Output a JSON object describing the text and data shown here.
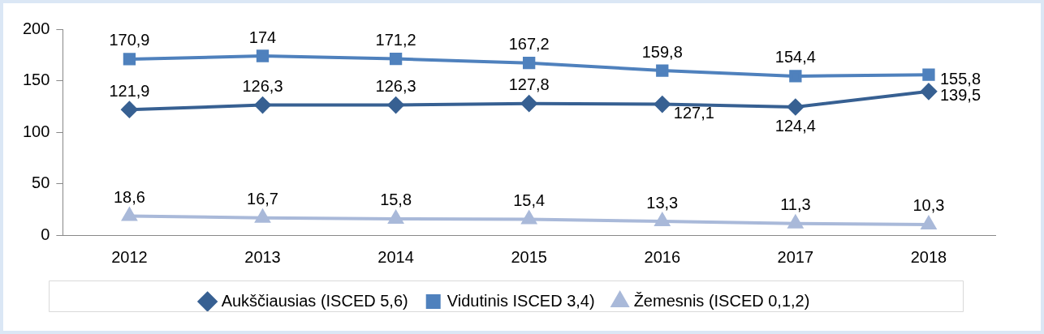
{
  "chart_data": {
    "type": "line",
    "categories": [
      "2012",
      "2013",
      "2014",
      "2015",
      "2016",
      "2017",
      "2018"
    ],
    "series": [
      {
        "name": "Aukščiausias (ISCED 5,6)",
        "color": "#376092",
        "marker": "diamond",
        "values": [
          121.9,
          126.3,
          126.3,
          127.8,
          127.1,
          124.4,
          139.5
        ],
        "value_labels": [
          "121,9",
          "126,3",
          "126,3",
          "127,8",
          "127,1",
          "124,4",
          "139,5"
        ]
      },
      {
        "name": "Vidutinis ISCED 3,4)",
        "color": "#4f81bd",
        "marker": "square",
        "values": [
          170.9,
          174,
          171.2,
          167.2,
          159.8,
          154.4,
          155.8
        ],
        "value_labels": [
          "170,9",
          "174",
          "171,2",
          "167,2",
          "159,8",
          "154,4",
          "155,8"
        ]
      },
      {
        "name": "Žemesnis (ISCED 0,1,2)",
        "color": "#a9b9d9",
        "marker": "triangle",
        "values": [
          18.6,
          16.7,
          15.8,
          15.4,
          13.3,
          11.3,
          10.3
        ],
        "value_labels": [
          "18,6",
          "16,7",
          "15,8",
          "15,4",
          "13,3",
          "11,3",
          "10,3"
        ]
      }
    ],
    "ylim": [
      0,
      200
    ],
    "yticks": [
      0,
      50,
      100,
      150,
      200
    ],
    "grid": false,
    "legend": "bottom",
    "line_style": "solid"
  }
}
